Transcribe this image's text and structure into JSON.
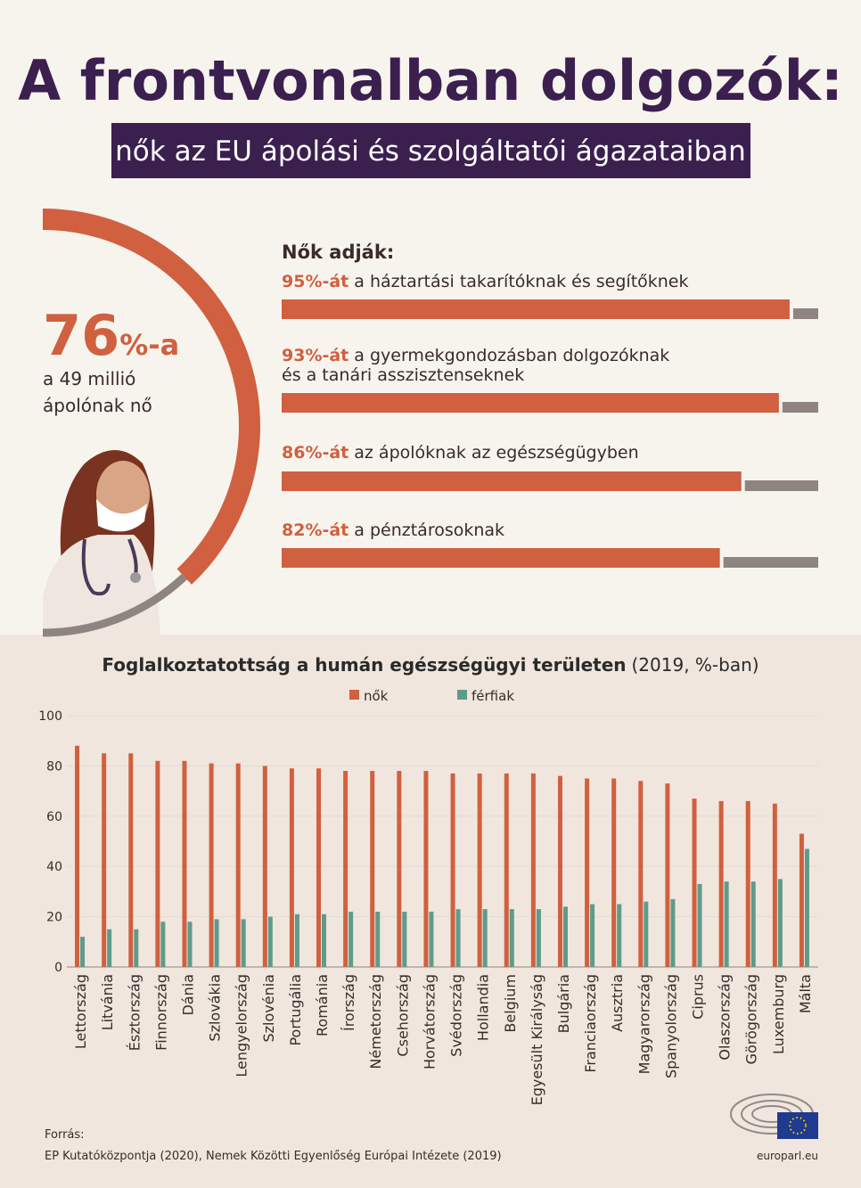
{
  "header": {
    "title": "A frontvonalban dolgozók:",
    "subtitle": "nők az EU ápolási és szolgáltatói ágazataiban"
  },
  "donut": {
    "value": 76,
    "suffix": "%-a",
    "text_lines": [
      "a 49 millió",
      "ápolónak nő"
    ]
  },
  "shares": {
    "heading": "Nők adják:",
    "items": [
      {
        "value": 95,
        "value_label": "95%-át",
        "text_lines": [
          "a háztartási takarítóknak és segítőknek"
        ]
      },
      {
        "value": 93,
        "value_label": "93%-át",
        "text_lines": [
          "a gyermekgondozásban dolgozóknak",
          "és a tanári asszisztenseknek"
        ]
      },
      {
        "value": 86,
        "value_label": "86%-át",
        "text_lines": [
          "az ápolóknak az egészségügyben"
        ]
      },
      {
        "value": 82,
        "value_label": "82%-át",
        "text_lines": [
          "a pénztárosoknak"
        ]
      }
    ]
  },
  "chart_data": {
    "type": "bar",
    "title": "Foglalkoztatottság a humán egészségügyi területen",
    "subtitle": "(2019, %-ban)",
    "categories": [
      "Lettország",
      "Litvánia",
      "Észtország",
      "Finnország",
      "Dánia",
      "Szlovákia",
      "Lengyelország",
      "Szlovénia",
      "Portugália",
      "Románia",
      "Írország",
      "Németország",
      "Csehország",
      "Horvátország",
      "Svédország",
      "Hollandia",
      "Belgium",
      "Egyesült Királyság",
      "Bulgária",
      "Franciaország",
      "Ausztria",
      "Magyarország",
      "Spanyolország",
      "Ciprus",
      "Olaszország",
      "Görögország",
      "Luxemburg",
      "Málta"
    ],
    "series": [
      {
        "name": "nők",
        "color": "#d0603f",
        "values": [
          88,
          85,
          85,
          82,
          82,
          81,
          81,
          80,
          79,
          79,
          78,
          78,
          78,
          78,
          77,
          77,
          77,
          77,
          76,
          75,
          75,
          74,
          73,
          67,
          66,
          66,
          65,
          53
        ]
      },
      {
        "name": "férfiak",
        "color": "#5e9b8a",
        "values": [
          12,
          15,
          15,
          18,
          18,
          19,
          19,
          20,
          21,
          21,
          22,
          22,
          22,
          22,
          23,
          23,
          23,
          23,
          24,
          25,
          25,
          26,
          27,
          33,
          34,
          34,
          35,
          47
        ]
      }
    ],
    "ylim": [
      0,
      100
    ],
    "yticks": [
      0,
      20,
      40,
      60,
      80,
      100
    ],
    "grid": true
  },
  "footer": {
    "source_label": "Forrás:",
    "source": "EP Kutatóközpontja (2020), Nemek Közötti Egyenlőség Európai Intézete (2019)",
    "site": "europarl.eu"
  }
}
